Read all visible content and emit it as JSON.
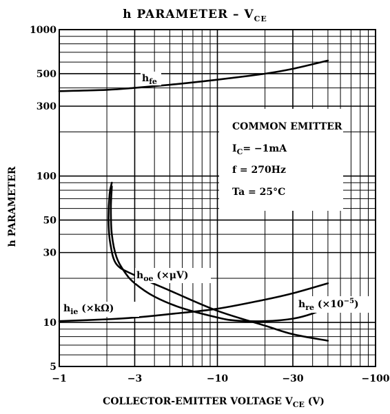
{
  "chart_data": {
    "type": "line",
    "title": {
      "main": "h   PARAMETER  –  V",
      "sub": "CE"
    },
    "xlabel": {
      "main": "COLLECTOR-EMITTER VOLTAGE   V",
      "sub": "CE",
      "suffix": "   (V)"
    },
    "ylabel": "h   PARAMETER",
    "x_scale": "log",
    "y_scale": "log",
    "xlim": [
      -1,
      -100
    ],
    "ylim": [
      5,
      1000
    ],
    "x_ticks": [
      {
        "value": 1,
        "label": "−1"
      },
      {
        "value": 3,
        "label": "−3"
      },
      {
        "value": 10,
        "label": "−10"
      },
      {
        "value": 30,
        "label": "−30"
      },
      {
        "value": 100,
        "label": "−100"
      }
    ],
    "y_ticks": [
      {
        "value": 5,
        "label": "5"
      },
      {
        "value": 10,
        "label": "10"
      },
      {
        "value": 30,
        "label": "30"
      },
      {
        "value": 50,
        "label": "50"
      },
      {
        "value": 100,
        "label": "100"
      },
      {
        "value": 300,
        "label": "300"
      },
      {
        "value": 500,
        "label": "500"
      },
      {
        "value": 1000,
        "label": "1000"
      }
    ],
    "grid": true,
    "conditions": {
      "line1": "COMMON EMITTER",
      "line2_main": "I",
      "line2_sub": "C",
      "line2_rest": "= −1mA",
      "line3": "f = 270Hz",
      "line4": "Ta = 25°C"
    },
    "series": [
      {
        "name": {
          "main": "h",
          "sub": "fe",
          "rest": ""
        },
        "x": [
          1,
          2,
          3,
          5,
          10,
          20,
          30,
          50
        ],
        "y": [
          380,
          388,
          400,
          420,
          455,
          500,
          540,
          615
        ]
      },
      {
        "name": {
          "main": "h",
          "sub": "oe",
          "rest": " (×μV)"
        },
        "x": [
          2.15,
          2.08,
          2.05,
          2.1,
          2.3,
          3,
          5,
          10,
          20,
          30,
          50
        ],
        "y": [
          90,
          75,
          50,
          35,
          25,
          21,
          16.5,
          12,
          9.5,
          8.3,
          7.5
        ]
      },
      {
        "name": {
          "main": "h",
          "sub": "ie",
          "rest": " (×kΩ)"
        },
        "x": [
          1,
          2,
          3,
          5,
          10,
          20,
          30,
          50
        ],
        "y": [
          10.2,
          10.5,
          10.8,
          11.4,
          12.4,
          14.3,
          15.8,
          18.5
        ]
      },
      {
        "name": {
          "main": "h",
          "sub": "re",
          "rest": " (×10",
          "sup": "−5",
          "end": ")"
        },
        "x": [
          2.15,
          2.12,
          2.15,
          2.3,
          2.6,
          3,
          4,
          6,
          10,
          13,
          20,
          30,
          40,
          50
        ],
        "y": [
          85,
          60,
          40,
          28,
          22,
          18.5,
          15,
          12.5,
          10.8,
          10.3,
          10.2,
          10.6,
          11.5,
          12.8
        ]
      }
    ]
  }
}
